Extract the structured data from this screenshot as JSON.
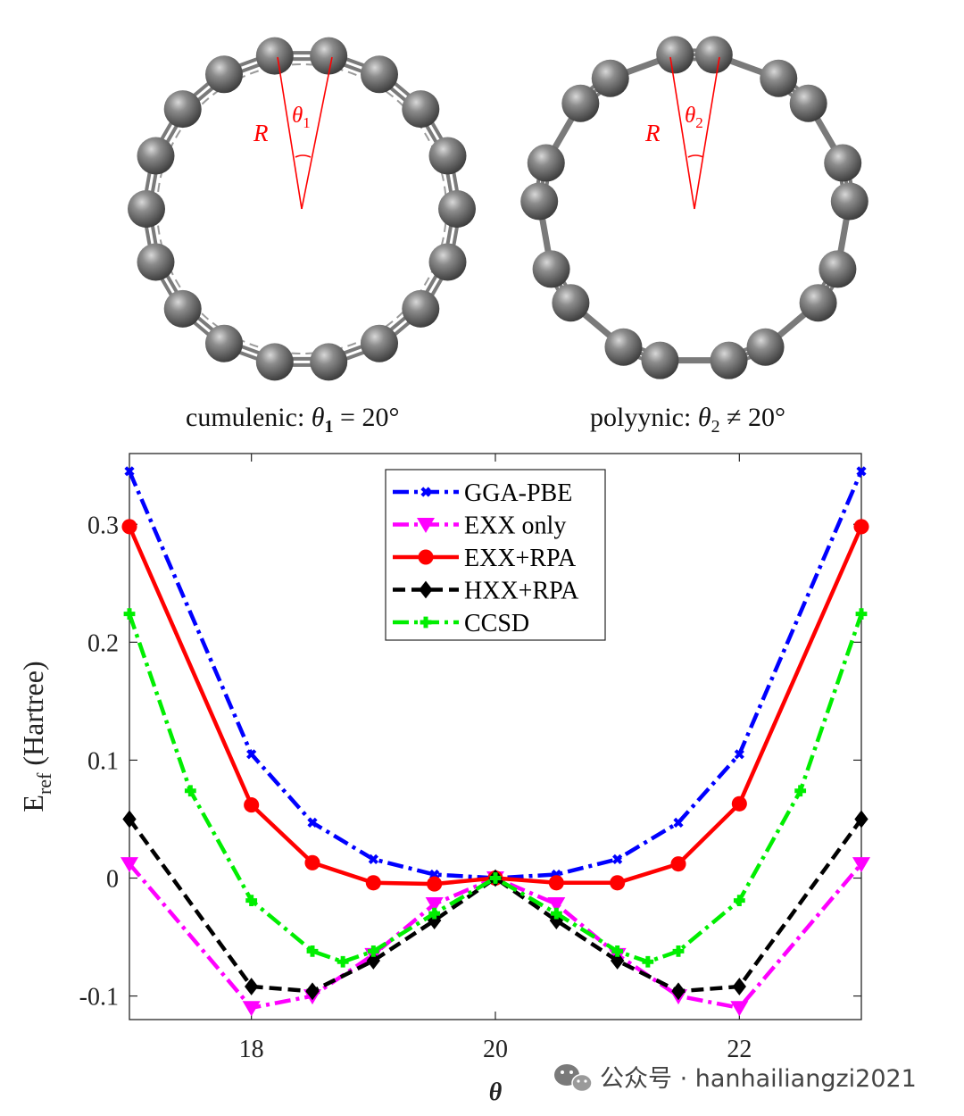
{
  "rings": [
    {
      "label_R": "R",
      "angle_label": "θ",
      "angle_sub": "1",
      "caption_text": "cumulenic: ",
      "caption_theta": "θ",
      "caption_sub": "1",
      "caption_rel": " = 20°"
    },
    {
      "label_R": "R",
      "angle_label": "θ",
      "angle_sub": "2",
      "caption_text": "polyynic: ",
      "caption_theta": "θ",
      "caption_sub": "2",
      "caption_rel": " ≠ 20°"
    }
  ],
  "colors": {
    "atom": "#6b6b6b",
    "bond": "#8a8a8a",
    "annotation": "#ff0000"
  },
  "watermark": {
    "icon": "wechat-icon",
    "text": "公众号 · hanhailiangzi2021"
  },
  "chart_data": {
    "type": "line",
    "xlabel": "θ",
    "ylabel_main": "E",
    "ylabel_sub": "ref",
    "ylabel_unit": " (Hartree)",
    "xlim": [
      17,
      23
    ],
    "ylim": [
      -0.12,
      0.36
    ],
    "xticks": [
      18,
      20,
      22
    ],
    "yticks": [
      -0.1,
      0,
      0.1,
      0.2,
      0.3
    ],
    "ytick_labels": [
      "-0.1",
      "0",
      "0.1",
      "0.2",
      "0.3"
    ],
    "legend_position": "top-center",
    "series": [
      {
        "name": "GGA-PBE",
        "color": "#0000ff",
        "dash": "dashdot",
        "marker": "x",
        "x": [
          17,
          18,
          18.5,
          19,
          19.5,
          20,
          20.5,
          21,
          21.5,
          22,
          23
        ],
        "y": [
          0.345,
          0.105,
          0.047,
          0.016,
          0.003,
          0,
          0.003,
          0.016,
          0.047,
          0.105,
          0.345
        ]
      },
      {
        "name": "EXX only",
        "color": "#ff00ff",
        "dash": "dashdot",
        "marker": "triangle-down",
        "x": [
          17,
          18,
          18.5,
          19,
          19.5,
          20,
          20.5,
          21,
          21.5,
          22,
          23
        ],
        "y": [
          0.012,
          -0.11,
          -0.1,
          -0.065,
          -0.022,
          0,
          -0.022,
          -0.065,
          -0.1,
          -0.11,
          0.012
        ]
      },
      {
        "name": "EXX+RPA",
        "color": "#ff0000",
        "dash": "solid",
        "marker": "circle",
        "x": [
          17,
          18,
          18.5,
          19,
          19.5,
          20,
          20.5,
          21,
          21.5,
          22,
          23
        ],
        "y": [
          0.298,
          0.062,
          0.013,
          -0.004,
          -0.005,
          0,
          -0.004,
          -0.004,
          0.012,
          0.063,
          0.298
        ]
      },
      {
        "name": "HXX+RPA",
        "color": "#000000",
        "dash": "dashed",
        "marker": "diamond",
        "x": [
          17,
          18,
          18.5,
          19,
          19.5,
          20,
          20.5,
          21,
          21.5,
          22,
          23
        ],
        "y": [
          0.05,
          -0.092,
          -0.096,
          -0.07,
          -0.036,
          0,
          -0.036,
          -0.07,
          -0.096,
          -0.092,
          0.05
        ]
      },
      {
        "name": "CCSD",
        "color": "#00ee00",
        "dash": "dashdot",
        "marker": "plus",
        "x": [
          17,
          17.5,
          18,
          18.5,
          18.75,
          19,
          19.5,
          20,
          20.5,
          21,
          21.25,
          21.5,
          22,
          22.5,
          23
        ],
        "y": [
          0.224,
          0.074,
          -0.019,
          -0.062,
          -0.071,
          -0.062,
          -0.03,
          0,
          -0.03,
          -0.062,
          -0.071,
          -0.062,
          -0.019,
          0.074,
          0.224
        ]
      }
    ]
  }
}
